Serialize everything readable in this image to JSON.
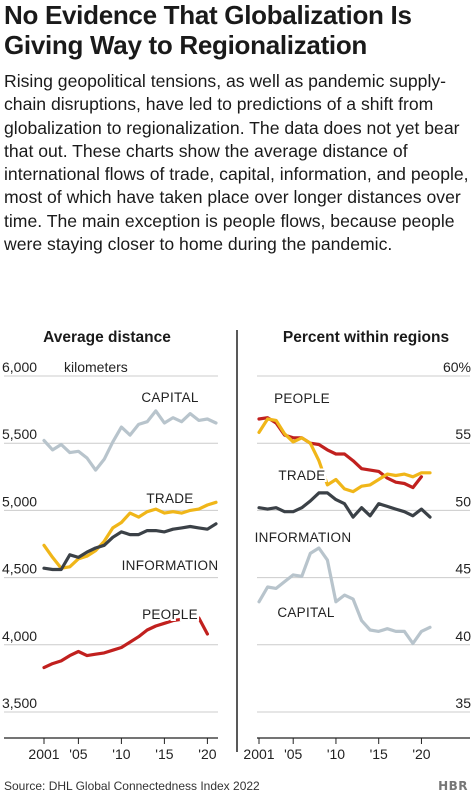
{
  "header": {
    "title": "No Evidence That Globalization Is Giving Way to Regionalization",
    "subtitle": "Rising geopolitical tensions, as well as pandemic supply-chain disruptions, have led to predictions of a shift from globalization to regionalization. The data does not yet bear that out. These charts show the average distance of international flows of trade, capital, information, and people, most of which have taken place over longer distances over time. The main exception is people flows, because people were staying closer to home during the pandemic."
  },
  "footer": {
    "source": "Source: DHL Global Connectedness Index 2022",
    "brand": "HBR"
  },
  "colors": {
    "capital": "#b8c4cc",
    "trade": "#f0b619",
    "information": "#3b4147",
    "people": "#c1201e",
    "axis": "#222222",
    "grid": "#cccccc"
  },
  "chart_data": [
    {
      "type": "line",
      "title": "Average distance",
      "ylabel": "kilometers",
      "ylim": [
        3500,
        6000
      ],
      "yticks": [
        "3,500",
        "4,000",
        "4,500",
        "5,000",
        "5,500",
        "6,000"
      ],
      "yticks_values": [
        3500,
        4000,
        4500,
        5000,
        5500,
        6000
      ],
      "xlim": [
        2001,
        2021
      ],
      "xticks": [
        "2001",
        "'05",
        "'10",
        "'15",
        "'20"
      ],
      "xticks_values": [
        2001,
        2005,
        2010,
        2015,
        2020
      ],
      "grid": "horizontal",
      "series": [
        {
          "name": "CAPITAL",
          "color_key": "capital",
          "x": [
            2001,
            2002,
            2003,
            2004,
            2005,
            2006,
            2007,
            2008,
            2009,
            2010,
            2011,
            2012,
            2013,
            2014,
            2015,
            2016,
            2017,
            2018,
            2019,
            2020,
            2021
          ],
          "values": [
            5520,
            5450,
            5490,
            5430,
            5440,
            5390,
            5300,
            5380,
            5510,
            5620,
            5560,
            5640,
            5660,
            5740,
            5650,
            5690,
            5660,
            5720,
            5670,
            5680,
            5650
          ]
        },
        {
          "name": "TRADE",
          "color_key": "trade",
          "x": [
            2001,
            2002,
            2003,
            2004,
            2005,
            2006,
            2007,
            2008,
            2009,
            2010,
            2011,
            2012,
            2013,
            2014,
            2015,
            2016,
            2017,
            2018,
            2019,
            2020,
            2021
          ],
          "values": [
            4740,
            4650,
            4570,
            4580,
            4640,
            4660,
            4700,
            4770,
            4870,
            4910,
            4980,
            4950,
            4990,
            5010,
            4980,
            4990,
            4980,
            5000,
            5010,
            5040,
            5060
          ]
        },
        {
          "name": "INFORMATION",
          "color_key": "information",
          "x": [
            2001,
            2002,
            2003,
            2004,
            2005,
            2006,
            2007,
            2008,
            2009,
            2010,
            2011,
            2012,
            2013,
            2014,
            2015,
            2016,
            2017,
            2018,
            2019,
            2020,
            2021
          ],
          "values": [
            4570,
            4560,
            4560,
            4670,
            4650,
            4690,
            4720,
            4740,
            4800,
            4840,
            4820,
            4820,
            4850,
            4850,
            4840,
            4860,
            4870,
            4880,
            4870,
            4860,
            4900
          ]
        },
        {
          "name": "PEOPLE",
          "color_key": "people",
          "x": [
            2001,
            2002,
            2003,
            2004,
            2005,
            2006,
            2007,
            2008,
            2009,
            2010,
            2011,
            2012,
            2013,
            2014,
            2015,
            2016,
            2017,
            2018,
            2019,
            2020
          ],
          "values": [
            3830,
            3860,
            3880,
            3920,
            3950,
            3920,
            3930,
            3940,
            3960,
            3980,
            4020,
            4060,
            4110,
            4140,
            4160,
            4180,
            4190,
            4200,
            4200,
            4080
          ]
        }
      ]
    },
    {
      "type": "line",
      "title": "Percent within regions",
      "ylim": [
        35,
        60
      ],
      "yticks": [
        "35",
        "40",
        "45",
        "50",
        "55",
        "60%"
      ],
      "yticks_values": [
        35,
        40,
        45,
        50,
        55,
        60
      ],
      "xlim": [
        2001,
        2021
      ],
      "xticks": [
        "2001",
        "'05",
        "'10",
        "'15",
        "'20"
      ],
      "xticks_values": [
        2001,
        2005,
        2010,
        2015,
        2020
      ],
      "grid": "horizontal",
      "series": [
        {
          "name": "PEOPLE",
          "color_key": "people",
          "x": [
            2001,
            2002,
            2003,
            2004,
            2005,
            2006,
            2007,
            2008,
            2009,
            2010,
            2011,
            2012,
            2013,
            2014,
            2015,
            2016,
            2017,
            2018,
            2019,
            2020
          ],
          "values": [
            56.8,
            56.9,
            56.5,
            55.6,
            55.4,
            55.4,
            55.0,
            54.9,
            54.5,
            54.2,
            54.2,
            53.7,
            53.1,
            53.0,
            52.9,
            52.4,
            52.1,
            52.0,
            51.7,
            52.5
          ]
        },
        {
          "name": "TRADE",
          "color_key": "trade",
          "x": [
            2001,
            2002,
            2003,
            2004,
            2005,
            2006,
            2007,
            2008,
            2009,
            2010,
            2011,
            2012,
            2013,
            2014,
            2015,
            2016,
            2017,
            2018,
            2019,
            2020,
            2021
          ],
          "values": [
            55.8,
            56.8,
            56.7,
            55.7,
            55.1,
            55.4,
            55.0,
            53.7,
            51.9,
            52.3,
            51.6,
            51.4,
            51.8,
            51.9,
            52.3,
            52.7,
            52.6,
            52.7,
            52.5,
            52.8,
            52.8
          ]
        },
        {
          "name": "INFORMATION",
          "color_key": "information",
          "x": [
            2001,
            2002,
            2003,
            2004,
            2005,
            2006,
            2007,
            2008,
            2009,
            2010,
            2011,
            2012,
            2013,
            2014,
            2015,
            2016,
            2017,
            2018,
            2019,
            2020,
            2021
          ],
          "values": [
            50.2,
            50.1,
            50.2,
            49.9,
            49.9,
            50.2,
            50.7,
            51.3,
            51.3,
            50.8,
            50.5,
            49.5,
            50.2,
            49.6,
            50.5,
            50.3,
            50.1,
            49.9,
            49.6,
            50.1,
            49.5
          ]
        },
        {
          "name": "CAPITAL",
          "color_key": "capital",
          "x": [
            2001,
            2002,
            2003,
            2004,
            2005,
            2006,
            2007,
            2008,
            2009,
            2010,
            2011,
            2012,
            2013,
            2014,
            2015,
            2016,
            2017,
            2018,
            2019,
            2020,
            2021
          ],
          "values": [
            43.2,
            44.3,
            44.2,
            44.7,
            45.2,
            45.1,
            46.8,
            47.2,
            46.3,
            43.2,
            43.7,
            43.4,
            41.8,
            41.1,
            41.0,
            41.2,
            41.0,
            41.0,
            40.1,
            41.0,
            41.3
          ]
        }
      ]
    }
  ]
}
